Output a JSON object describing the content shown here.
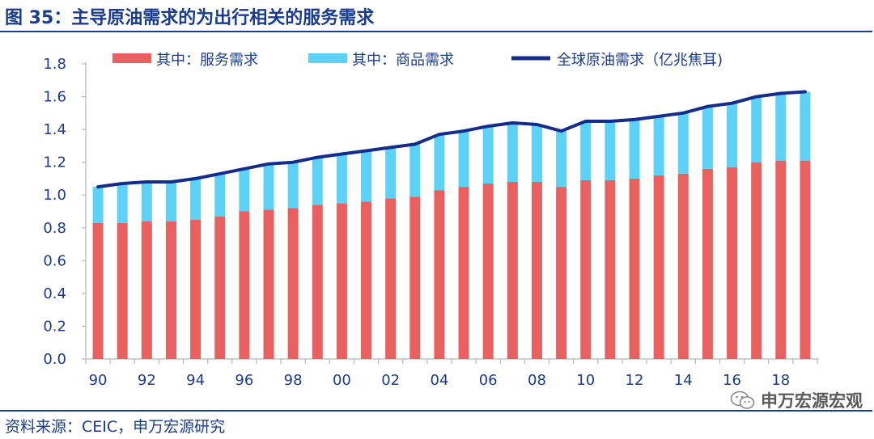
{
  "title": "图 35：主导原油需求的为出行相关的服务需求",
  "source": "资料来源：CEIC，申万宏源研究",
  "watermark": "申万宏源宏观",
  "colors": {
    "services": "#e8605f",
    "goods": "#5ed2f6",
    "total_line": "#142d8c",
    "text": "#1a3c8f"
  },
  "chart_data": {
    "type": "bar",
    "stacked": true,
    "x": [
      1990,
      1991,
      1992,
      1993,
      1994,
      1995,
      1996,
      1997,
      1998,
      1999,
      2000,
      2001,
      2002,
      2003,
      2004,
      2005,
      2006,
      2007,
      2008,
      2009,
      2010,
      2011,
      2012,
      2013,
      2014,
      2015,
      2016,
      2017,
      2018,
      2019
    ],
    "x_tick_labels": [
      "90",
      "92",
      "94",
      "96",
      "98",
      "00",
      "02",
      "04",
      "06",
      "08",
      "10",
      "12",
      "14",
      "16",
      "18"
    ],
    "y_tick_labels": [
      "0.0",
      "0.2",
      "0.4",
      "0.6",
      "0.8",
      "1.0",
      "1.2",
      "1.4",
      "1.6",
      "1.8"
    ],
    "ylim": [
      0,
      1.8
    ],
    "y_step": 0.2,
    "xlabel": "",
    "ylabel": "",
    "legend_position": "top",
    "grid": false,
    "series": [
      {
        "name": "其中：服务需求",
        "type": "bar",
        "values": [
          0.83,
          0.83,
          0.84,
          0.84,
          0.85,
          0.87,
          0.9,
          0.91,
          0.92,
          0.94,
          0.95,
          0.96,
          0.98,
          0.99,
          1.03,
          1.05,
          1.07,
          1.08,
          1.08,
          1.05,
          1.09,
          1.09,
          1.1,
          1.12,
          1.13,
          1.16,
          1.17,
          1.2,
          1.21,
          1.21
        ]
      },
      {
        "name": "其中：商品需求",
        "type": "bar",
        "values": [
          0.22,
          0.24,
          0.24,
          0.24,
          0.25,
          0.26,
          0.26,
          0.28,
          0.28,
          0.29,
          0.3,
          0.31,
          0.31,
          0.32,
          0.34,
          0.34,
          0.35,
          0.36,
          0.35,
          0.34,
          0.36,
          0.36,
          0.36,
          0.36,
          0.37,
          0.38,
          0.39,
          0.4,
          0.41,
          0.42
        ]
      },
      {
        "name": "全球原油需求（亿兆焦耳)",
        "type": "line",
        "values": [
          1.05,
          1.07,
          1.08,
          1.08,
          1.1,
          1.13,
          1.16,
          1.19,
          1.2,
          1.23,
          1.25,
          1.27,
          1.29,
          1.31,
          1.37,
          1.39,
          1.42,
          1.44,
          1.43,
          1.39,
          1.45,
          1.45,
          1.46,
          1.48,
          1.5,
          1.54,
          1.56,
          1.6,
          1.62,
          1.63
        ]
      }
    ]
  }
}
